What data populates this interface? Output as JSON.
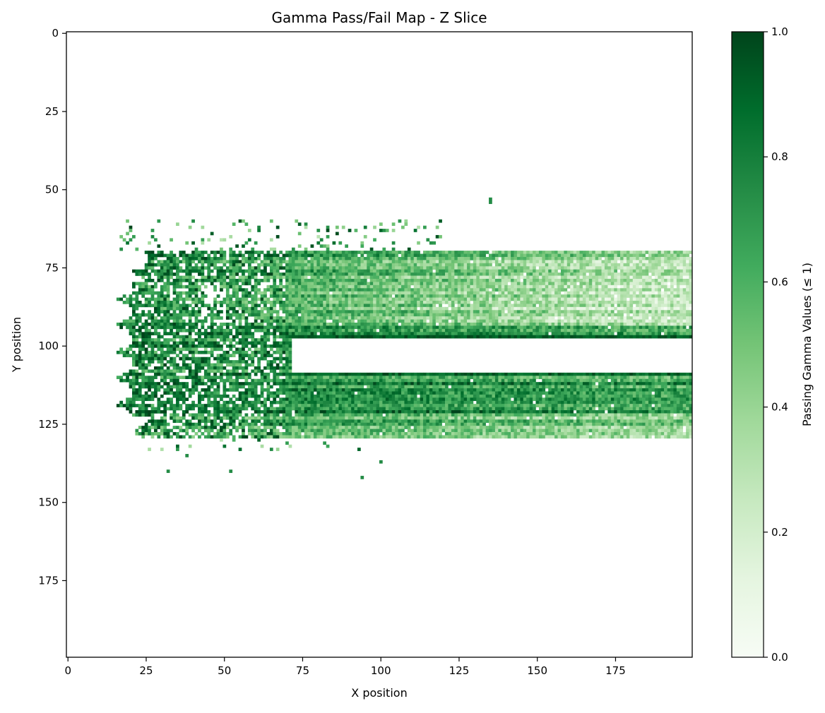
{
  "chart_data": {
    "type": "heatmap",
    "title": "Gamma Pass/Fail Map - Z Slice",
    "xlabel": "X position",
    "ylabel": "Y position",
    "xlim": [
      -0.5,
      199.5
    ],
    "ylim": [
      199.5,
      -0.5
    ],
    "y_inverted": true,
    "x_ticks": [
      0,
      25,
      50,
      75,
      100,
      125,
      150,
      175
    ],
    "x_tick_labels": [
      "0",
      "25",
      "50",
      "75",
      "100",
      "125",
      "150",
      "175"
    ],
    "y_ticks": [
      0,
      25,
      50,
      75,
      100,
      125,
      150,
      175
    ],
    "y_tick_labels": [
      "0",
      "25",
      "50",
      "75",
      "100",
      "125",
      "150",
      "175"
    ],
    "grid": false,
    "colormap": "Greens",
    "colormap_stops": [
      "#f7fcf5",
      "#e5f5e0",
      "#c7e9c0",
      "#a1d99b",
      "#74c476",
      "#41ab5d",
      "#238b45",
      "#006d2c",
      "#00441b"
    ],
    "colorbar": {
      "label": "Passing Gamma Values (≤ 1)",
      "range": [
        0.0,
        1.0
      ],
      "ticks": [
        0.0,
        0.2,
        0.4,
        0.6,
        0.8,
        1.0
      ],
      "tick_labels": [
        "0.0",
        "0.2",
        "0.4",
        "0.6",
        "0.8",
        "1.0"
      ]
    },
    "grid_size": [
      200,
      200
    ],
    "pixels_without_value": "not shown (white)",
    "region_description": {
      "upper_band": {
        "x_range": [
          15,
          199
        ],
        "y_range": [
          70,
          97
        ],
        "approx_value_left": 0.7,
        "approx_value_right": 0.3
      },
      "lower_band": {
        "x_range": [
          15,
          199
        ],
        "y_range": [
          109,
          129
        ],
        "approx_value_left": 0.65,
        "approx_value_right": 0.7
      },
      "failing_gap": {
        "x_range": [
          70,
          199
        ],
        "y_range": [
          98,
          108
        ]
      },
      "upper_rim": {
        "x_range": [
          70,
          199
        ],
        "y": 97,
        "approx_value": 0.95
      },
      "lower_rim": {
        "x_range": [
          70,
          199
        ],
        "y": 109,
        "approx_value": 0.9
      },
      "isolated_points": [
        [
          135,
          53
        ],
        [
          135,
          54
        ],
        [
          94,
          142
        ],
        [
          100,
          137
        ],
        [
          32,
          140
        ],
        [
          52,
          140
        ],
        [
          38,
          135
        ]
      ]
    }
  }
}
